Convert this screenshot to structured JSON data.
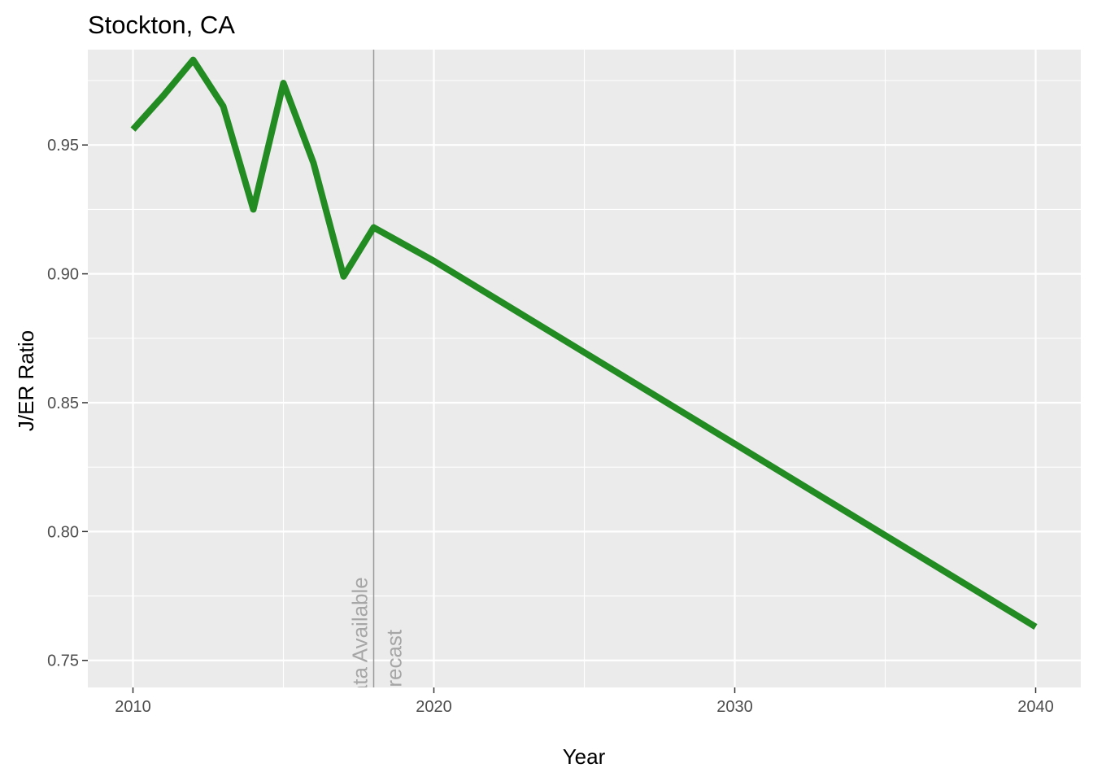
{
  "chart_data": {
    "type": "line",
    "title": "Stockton, CA",
    "xlabel": "Year",
    "ylabel": "J/ER Ratio",
    "xlim": [
      2008.5,
      2041.5
    ],
    "ylim": [
      0.7395,
      0.987
    ],
    "x_ticks": [
      2010,
      2020,
      2030,
      2040
    ],
    "x_tick_labels": [
      "2010",
      "2020",
      "2030",
      "2040"
    ],
    "x_minor_ticks": [
      2015,
      2025,
      2035
    ],
    "y_ticks": [
      0.75,
      0.8,
      0.85,
      0.9,
      0.95
    ],
    "y_tick_labels": [
      "0.75",
      "0.80",
      "0.85",
      "0.90",
      "0.95"
    ],
    "y_minor_ticks": [
      0.775,
      0.825,
      0.875,
      0.925,
      0.975
    ],
    "grid": true,
    "series": [
      {
        "x": [
          2010,
          2011,
          2012,
          2013,
          2014,
          2015,
          2016,
          2017,
          2018,
          2020,
          2040
        ],
        "y": [
          0.956,
          0.969,
          0.983,
          0.965,
          0.925,
          0.974,
          0.943,
          0.899,
          0.918,
          0.905,
          0.763
        ]
      }
    ],
    "vline_x": 2018,
    "annotations": [
      {
        "text": "Data Available",
        "x": 2018,
        "side": "left"
      },
      {
        "text": "Forecast",
        "x": 2018,
        "side": "right"
      }
    ],
    "colors": {
      "line": "#228B22",
      "panel": "#EBEBEB",
      "grid": "#FFFFFF",
      "vline": "#999999",
      "annotation": "#A6A6A6"
    }
  }
}
